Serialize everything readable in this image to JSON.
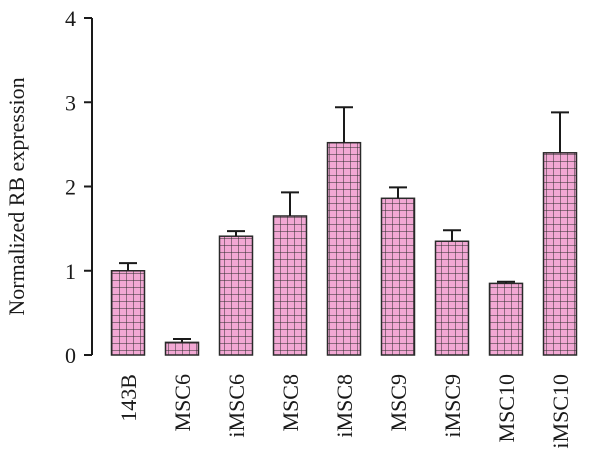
{
  "chart_data": {
    "type": "bar",
    "categories": [
      "143B",
      "MSC6",
      "iMSC6",
      "MSC8",
      "iMSC8",
      "MSC9",
      "iMSC9",
      "MSC10",
      "iMSC10"
    ],
    "values": [
      1.0,
      0.15,
      1.41,
      1.65,
      2.52,
      1.86,
      1.35,
      0.85,
      2.4
    ],
    "errors": [
      0.09,
      0.04,
      0.06,
      0.28,
      0.42,
      0.13,
      0.13,
      0.02,
      0.48
    ],
    "ylabel": "Normalized RB expression",
    "xlabel": "",
    "ylim": [
      0,
      4
    ],
    "yticks": [
      0,
      1,
      2,
      3,
      4
    ],
    "grid": false,
    "bar_fill": "#f2a8d4",
    "bar_pattern": "grid",
    "bar_pattern_color": "#2a2a2a"
  }
}
